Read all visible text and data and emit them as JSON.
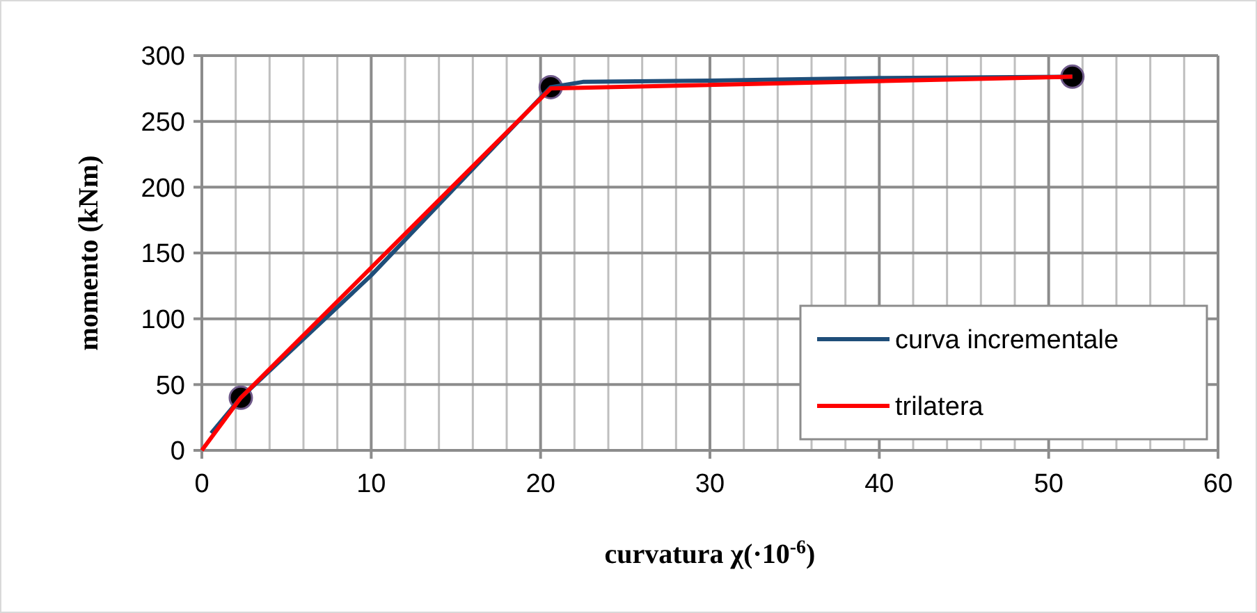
{
  "chart_data": {
    "type": "line",
    "xlabel": "curvatura χ(·10$^{-6}$)",
    "ylabel": "momento (kNm)",
    "xlim": [
      0,
      60
    ],
    "ylim": [
      0,
      300
    ],
    "xticks": [
      0,
      {
        "value": 2,
        "label": null
      },
      {
        "value": 4,
        "label": null
      },
      {
        "value": 6,
        "label": null
      },
      {
        "value": 8,
        "label": null
      },
      10,
      {
        "value": 12,
        "label": null
      },
      {
        "value": 14,
        "label": null
      },
      {
        "value": 16,
        "label": null
      },
      {
        "value": 18,
        "label": null
      },
      20,
      {
        "value": 22,
        "label": null
      },
      {
        "value": 24,
        "label": null
      },
      {
        "value": 26,
        "label": null
      },
      {
        "value": 28,
        "label": null
      },
      30,
      {
        "value": 32,
        "label": null
      },
      {
        "value": 34,
        "label": null
      },
      {
        "value": 36,
        "label": null
      },
      {
        "value": 38,
        "label": null
      },
      40,
      {
        "value": 42,
        "label": null
      },
      {
        "value": 44,
        "label": null
      },
      {
        "value": 46,
        "label": null
      },
      {
        "value": 48,
        "label": null
      },
      50,
      {
        "value": 52,
        "label": null
      },
      {
        "value": 54,
        "label": null
      },
      {
        "value": 56,
        "label": null
      },
      {
        "value": 58,
        "label": null
      },
      60
    ],
    "yticks": [
      0,
      50,
      100,
      150,
      200,
      250,
      300
    ],
    "grid": true,
    "legend": "bottom right",
    "series": [
      {
        "type": "scatter",
        "color": "#000000",
        "marker": "circle",
        "x": [
          2.3,
          20.6,
          51.4
        ],
        "values": [
          40,
          276,
          284
        ]
      },
      {
        "name": "curva incrementale",
        "color": "#1f4e79",
        "marker": "none",
        "x": [
          0.55,
          2.3,
          10,
          20.6,
          22.5,
          30,
          40,
          51.4
        ],
        "values": [
          13,
          40,
          133,
          276,
          280,
          281,
          283,
          284
        ]
      },
      {
        "name": "trilatera",
        "color": "#ff0000",
        "marker": "none",
        "x": [
          0,
          2.3,
          20.6,
          51.4
        ],
        "values": [
          0,
          40,
          275,
          284
        ]
      }
    ]
  }
}
